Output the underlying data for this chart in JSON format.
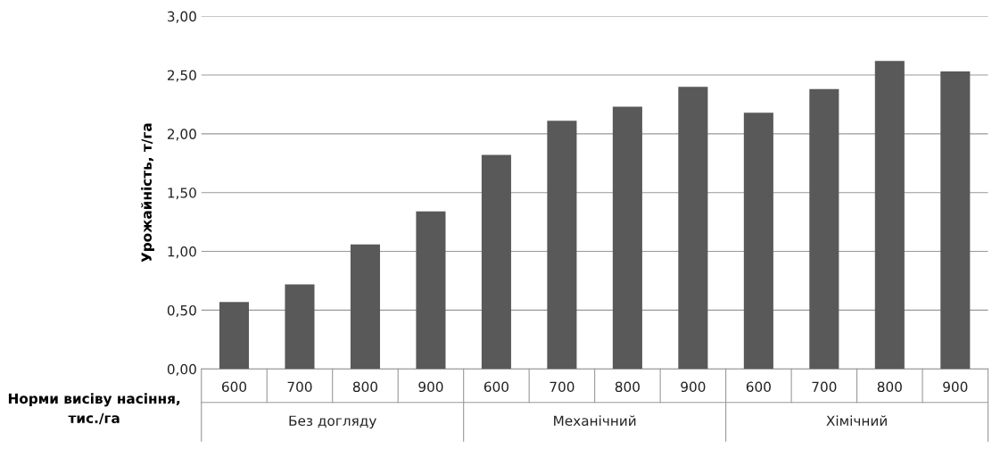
{
  "chart_data": {
    "type": "bar",
    "ylabel": "Урожайність, т/га",
    "xlabel": "Норми висіву насіння, тис./га",
    "categories": [
      "600",
      "700",
      "800",
      "900",
      "600",
      "700",
      "800",
      "900",
      "600",
      "700",
      "800",
      "900"
    ],
    "values": [
      0.57,
      0.72,
      1.06,
      1.34,
      1.82,
      2.11,
      2.23,
      2.4,
      2.18,
      2.38,
      2.62,
      2.53
    ],
    "color": "#595959",
    "annotations": [
      "Без догляду",
      "Механічний",
      "Хімічний"
    ],
    "ylim": [
      0,
      3
    ],
    "yticks": [
      {
        "value": 0,
        "label": "0,00"
      },
      {
        "value": 0.5,
        "label": "0,50"
      },
      {
        "value": 1,
        "label": "1,00"
      },
      {
        "value": 1.5,
        "label": "1,50"
      },
      {
        "value": 2,
        "label": "2,00"
      },
      {
        "value": 2.5,
        "label": "2,50"
      },
      {
        "value": 3,
        "label": "3,00"
      }
    ],
    "grid": "y"
  }
}
